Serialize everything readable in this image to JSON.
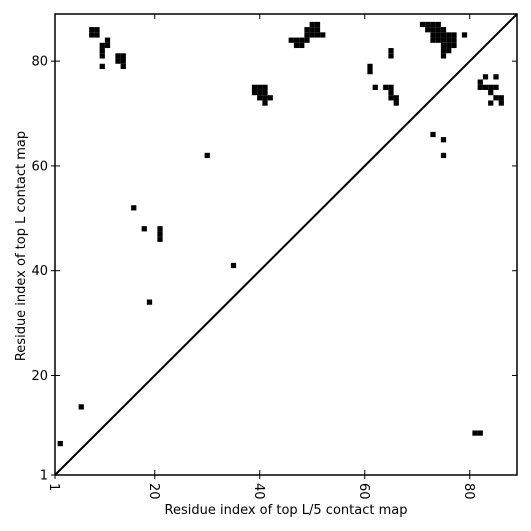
{
  "chart_data": {
    "type": "heatmap",
    "title": "",
    "xlabel": "Residue index of top L/5 contact map",
    "ylabel": "Residue index of top L contact map",
    "xlim": [
      1,
      89
    ],
    "ylim": [
      1,
      89
    ],
    "x_ticks": [
      1,
      20,
      40,
      60,
      80
    ],
    "y_ticks": [
      1,
      20,
      40,
      60,
      80
    ],
    "x_tick_labels": [
      "1",
      "20",
      "40",
      "60",
      "80"
    ],
    "y_tick_labels": [
      "1",
      "20",
      "40",
      "60",
      "80"
    ],
    "diagonal": true,
    "upper_triangle_series": "top L/5 contacts",
    "lower_triangle_series": "top L contacts",
    "cell_color": "#000000",
    "cells": [
      [
        8,
        86
      ],
      [
        9,
        86
      ],
      [
        8,
        85
      ],
      [
        9,
        85
      ],
      [
        10,
        83
      ],
      [
        11,
        83
      ],
      [
        11,
        84
      ],
      [
        10,
        82
      ],
      [
        10,
        81
      ],
      [
        10,
        79
      ],
      [
        13,
        81
      ],
      [
        14,
        81
      ],
      [
        13,
        80
      ],
      [
        14,
        80
      ],
      [
        14,
        79
      ],
      [
        16,
        52
      ],
      [
        18,
        48
      ],
      [
        21,
        48
      ],
      [
        21,
        47
      ],
      [
        21,
        46
      ],
      [
        19,
        34
      ],
      [
        30,
        62
      ],
      [
        35,
        41
      ],
      [
        39,
        75
      ],
      [
        40,
        75
      ],
      [
        41,
        75
      ],
      [
        39,
        74
      ],
      [
        40,
        74
      ],
      [
        41,
        74
      ],
      [
        40,
        73
      ],
      [
        41,
        73
      ],
      [
        42,
        73
      ],
      [
        41,
        72
      ],
      [
        46,
        84
      ],
      [
        47,
        84
      ],
      [
        47,
        83
      ],
      [
        48,
        83
      ],
      [
        48,
        84
      ],
      [
        49,
        85
      ],
      [
        49,
        84
      ],
      [
        50,
        85
      ],
      [
        51,
        85
      ],
      [
        52,
        85
      ],
      [
        50,
        86
      ],
      [
        49,
        86
      ],
      [
        50,
        87
      ],
      [
        51,
        87
      ],
      [
        51,
        86
      ],
      [
        61,
        79
      ],
      [
        61,
        78
      ],
      [
        62,
        75
      ],
      [
        64,
        75
      ],
      [
        65,
        75
      ],
      [
        65,
        74
      ],
      [
        65,
        73
      ],
      [
        66,
        73
      ],
      [
        66,
        72
      ],
      [
        65,
        82
      ],
      [
        65,
        81
      ],
      [
        71,
        87
      ],
      [
        72,
        87
      ],
      [
        73,
        87
      ],
      [
        74,
        87
      ],
      [
        72,
        86
      ],
      [
        73,
        86
      ],
      [
        74,
        86
      ],
      [
        75,
        86
      ],
      [
        73,
        85
      ],
      [
        74,
        85
      ],
      [
        75,
        85
      ],
      [
        76,
        85
      ],
      [
        77,
        85
      ],
      [
        73,
        84
      ],
      [
        74,
        84
      ],
      [
        75,
        84
      ],
      [
        76,
        84
      ],
      [
        77,
        84
      ],
      [
        75,
        83
      ],
      [
        76,
        83
      ],
      [
        77,
        83
      ],
      [
        75,
        82
      ],
      [
        76,
        82
      ],
      [
        75,
        81
      ],
      [
        79,
        85
      ],
      [
        73,
        66
      ],
      [
        75,
        65
      ],
      [
        75,
        62
      ],
      [
        82,
        76
      ],
      [
        83,
        77
      ],
      [
        82,
        75
      ],
      [
        83,
        75
      ],
      [
        84,
        75
      ],
      [
        85,
        75
      ],
      [
        84,
        74
      ],
      [
        84,
        72
      ],
      [
        85,
        77
      ],
      [
        85,
        73
      ],
      [
        86,
        73
      ],
      [
        86,
        72
      ],
      [
        81,
        9
      ],
      [
        82,
        9
      ],
      [
        2,
        7
      ],
      [
        6,
        14
      ]
    ]
  }
}
